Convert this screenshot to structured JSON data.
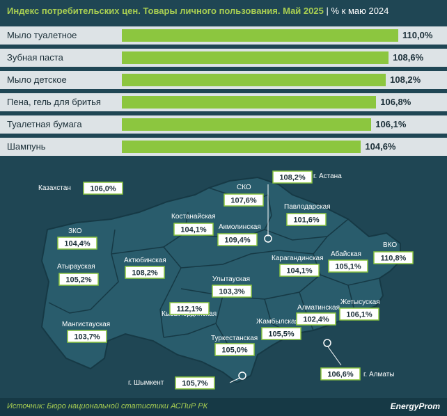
{
  "header": {
    "title": "Индекс потребительских цен. Товары личного пользования. Май 2025",
    "separator": "|",
    "unit": "% к маю 2024"
  },
  "chart_data": [
    {
      "type": "bar",
      "orientation": "horizontal",
      "categories": [
        "Мыло туалетное",
        "Зубная паста",
        "Мыло детское",
        "Пена, гель для бритья",
        "Туалетная бумага",
        "Шампунь"
      ],
      "values": [
        110.0,
        108.6,
        108.2,
        106.8,
        106.1,
        104.6
      ],
      "value_labels": [
        "110,0%",
        "108,6%",
        "108,2%",
        "106,8%",
        "106,1%",
        "104,6%"
      ]
    },
    {
      "type": "map",
      "regions": [
        {
          "name": "Казахстан",
          "value": 106.0,
          "label": "106,0%"
        },
        {
          "name": "СКО",
          "value": 107.6,
          "label": "107,6%"
        },
        {
          "name": "г. Астана",
          "value": 108.2,
          "label": "108,2%"
        },
        {
          "name": "Павлодарская",
          "value": 101.6,
          "label": "101,6%"
        },
        {
          "name": "Костанайская",
          "value": 104.1,
          "label": "104,1%"
        },
        {
          "name": "Акмолинская",
          "value": 109.4,
          "label": "109,4%"
        },
        {
          "name": "ЗКО",
          "value": 104.4,
          "label": "104,4%"
        },
        {
          "name": "Атырауская",
          "value": 105.2,
          "label": "105,2%"
        },
        {
          "name": "Актюбинская",
          "value": 108.2,
          "label": "108,2%"
        },
        {
          "name": "Карагандинская",
          "value": 104.1,
          "label": "104,1%"
        },
        {
          "name": "Абайская",
          "value": 105.1,
          "label": "105,1%"
        },
        {
          "name": "ВКО",
          "value": 110.8,
          "label": "110,8%"
        },
        {
          "name": "Улытауская",
          "value": 103.3,
          "label": "103,3%"
        },
        {
          "name": "Кызылординская",
          "value": 112.1,
          "label": "112,1%"
        },
        {
          "name": "Мангистауская",
          "value": 103.7,
          "label": "103,7%"
        },
        {
          "name": "Жамбылская",
          "value": 105.5,
          "label": "105,5%"
        },
        {
          "name": "Алматинская",
          "value": 102.4,
          "label": "102,4%"
        },
        {
          "name": "Жетысуская",
          "value": 106.1,
          "label": "106,1%"
        },
        {
          "name": "Туркестанская",
          "value": 105.0,
          "label": "105,0%"
        },
        {
          "name": "г. Шымкент",
          "value": 105.7,
          "label": "105,7%"
        },
        {
          "name": "г. Алматы",
          "value": 106.6,
          "label": "106,6%"
        }
      ]
    }
  ],
  "footer": {
    "source": "Источник: Бюро национальной статистики АСПиР РК",
    "brand": "EnergyProm"
  },
  "colors": {
    "background": "#1f4654",
    "bar": "#8cc63f",
    "row": "#dde3e6",
    "map_fill": "#295c6c",
    "title": "#a9cf52"
  }
}
